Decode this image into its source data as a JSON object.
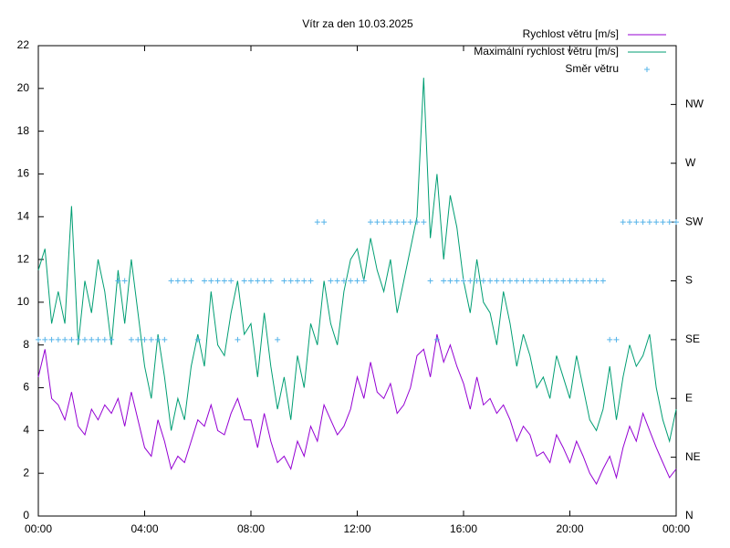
{
  "chart_data": {
    "type": "line",
    "title": "Vítr za den 10.03.2025",
    "x": [
      0,
      0.25,
      0.5,
      0.75,
      1,
      1.25,
      1.5,
      1.75,
      2,
      2.25,
      2.5,
      2.75,
      3,
      3.25,
      3.5,
      3.75,
      4,
      4.25,
      4.5,
      4.75,
      5,
      5.25,
      5.5,
      5.75,
      6,
      6.25,
      6.5,
      6.75,
      7,
      7.25,
      7.5,
      7.75,
      8,
      8.25,
      8.5,
      8.75,
      9,
      9.25,
      9.5,
      9.75,
      10,
      10.25,
      10.5,
      10.75,
      11,
      11.25,
      11.5,
      11.75,
      12,
      12.25,
      12.5,
      12.75,
      13,
      13.25,
      13.5,
      13.75,
      14,
      14.25,
      14.5,
      14.75,
      15,
      15.25,
      15.5,
      15.75,
      16,
      16.25,
      16.5,
      16.75,
      17,
      17.25,
      17.5,
      17.75,
      18,
      18.25,
      18.5,
      18.75,
      19,
      19.25,
      19.5,
      19.75,
      20,
      20.25,
      20.5,
      20.75,
      21,
      21.25,
      21.5,
      21.75,
      22,
      22.25,
      22.5,
      22.75,
      23,
      23.25,
      23.5,
      23.75,
      24
    ],
    "series": [
      {
        "name": "Rychlost větru [m/s]",
        "color": "#9400d3",
        "style": "line",
        "values": [
          6.5,
          7.8,
          5.5,
          5.2,
          4.5,
          5.8,
          4.2,
          3.8,
          5,
          4.5,
          5.2,
          4.8,
          5.5,
          4.2,
          5.8,
          4.5,
          3.2,
          2.8,
          4.5,
          3.5,
          2.2,
          2.8,
          2.5,
          3.5,
          4.5,
          4.2,
          5.2,
          4,
          3.8,
          4.8,
          5.5,
          4.5,
          4.5,
          3.2,
          4.8,
          3.5,
          2.5,
          2.8,
          2.2,
          3.5,
          2.8,
          4.2,
          3.5,
          5.2,
          4.5,
          3.8,
          4.2,
          5,
          6.5,
          5.5,
          7.2,
          5.8,
          5.5,
          6.2,
          4.8,
          5.2,
          6,
          7.5,
          7.8,
          6.5,
          8.5,
          7.2,
          8,
          7,
          6.2,
          5,
          6.5,
          5.2,
          5.5,
          4.8,
          5.2,
          4.5,
          3.5,
          4.2,
          3.8,
          2.8,
          3,
          2.5,
          3.8,
          3.2,
          2.5,
          3.5,
          2.8,
          2,
          1.5,
          2.2,
          2.8,
          1.8,
          3.2,
          4.2,
          3.5,
          4.8,
          4,
          3.2,
          2.5,
          1.8,
          2.2
        ]
      },
      {
        "name": "Maximální rychlost větru [m/s]",
        "color": "#009e73",
        "style": "line",
        "values": [
          11.5,
          12.5,
          9,
          10.5,
          9,
          14.5,
          8,
          11,
          9.5,
          12,
          10.5,
          8,
          11.5,
          9,
          12,
          9.5,
          7,
          5.5,
          8.5,
          6.5,
          4,
          5.5,
          4.5,
          7,
          8.5,
          7,
          10.5,
          8,
          7.5,
          9.5,
          11,
          8.5,
          9,
          6.5,
          9.5,
          7,
          5,
          6.5,
          4.5,
          7.5,
          6,
          9,
          8,
          11,
          9,
          8,
          10.5,
          12,
          12.5,
          11,
          13,
          11.5,
          10.5,
          12,
          9.5,
          11,
          12.5,
          14,
          20.5,
          13,
          16,
          12,
          15,
          13.5,
          11,
          9.5,
          12,
          10,
          9.5,
          8,
          10.5,
          9,
          7,
          8.5,
          7.5,
          6,
          6.5,
          5.5,
          7.5,
          6.5,
          5.5,
          7.5,
          6,
          4.5,
          4,
          5,
          7,
          4.5,
          6.5,
          8,
          7,
          7.5,
          8.5,
          6,
          4.5,
          3.5,
          5
        ]
      },
      {
        "name": "Směr větru",
        "color": "#56b4e9",
        "style": "points",
        "axis": "y2",
        "values": [
          3,
          3,
          3,
          3,
          3,
          3,
          3,
          3,
          3,
          3,
          3,
          3,
          4,
          4,
          3,
          3,
          3,
          3,
          3,
          3,
          4,
          4,
          4,
          4,
          3,
          4,
          4,
          4,
          4,
          4,
          3,
          4,
          4,
          4,
          4,
          4,
          3,
          4,
          4,
          4,
          4,
          4,
          5,
          5,
          4,
          4,
          4,
          4,
          4,
          4,
          5,
          5,
          5,
          5,
          5,
          5,
          5,
          5,
          5,
          4,
          3,
          4,
          4,
          4,
          4,
          4,
          4,
          4,
          4,
          4,
          4,
          4,
          4,
          4,
          4,
          4,
          4,
          4,
          4,
          4,
          4,
          4,
          4,
          4,
          4,
          4,
          3,
          3,
          5,
          5,
          5,
          5,
          5,
          5,
          5,
          5,
          5
        ]
      }
    ],
    "xlim": [
      0,
      24
    ],
    "xticks": [
      {
        "value": 0,
        "label": "00:00"
      },
      {
        "value": 4,
        "label": "04:00"
      },
      {
        "value": 8,
        "label": "08:00"
      },
      {
        "value": 12,
        "label": "12:00"
      },
      {
        "value": 16,
        "label": "16:00"
      },
      {
        "value": 20,
        "label": "20:00"
      },
      {
        "value": 24,
        "label": "00:00"
      }
    ],
    "ylim": [
      0,
      22
    ],
    "yticks": [
      0,
      2,
      4,
      6,
      8,
      10,
      12,
      14,
      16,
      18,
      20,
      22
    ],
    "y2lim": [
      0,
      8
    ],
    "y2ticks": [
      {
        "value": 0,
        "label": "N"
      },
      {
        "value": 1,
        "label": "NE"
      },
      {
        "value": 2,
        "label": "E"
      },
      {
        "value": 3,
        "label": "SE"
      },
      {
        "value": 4,
        "label": "S"
      },
      {
        "value": 5,
        "label": "SW"
      },
      {
        "value": 6,
        "label": "W"
      },
      {
        "value": 7,
        "label": "NW"
      }
    ],
    "legend": "top-right",
    "grid": false
  }
}
